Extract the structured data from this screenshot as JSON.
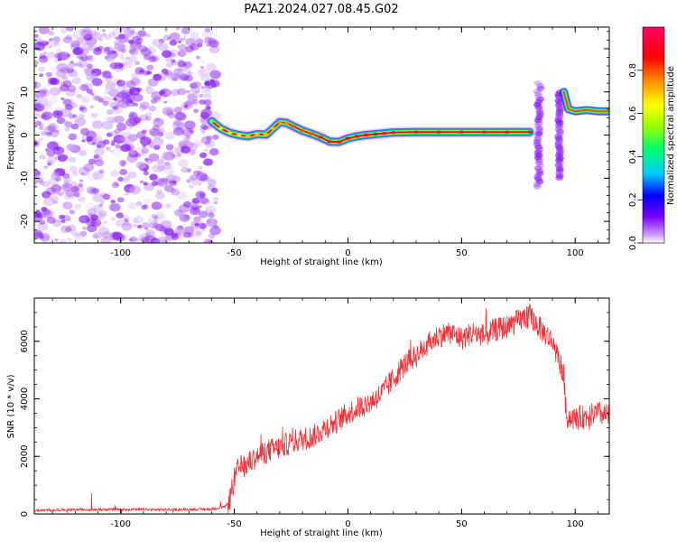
{
  "figure": {
    "title": "PAZ1.2024.027.08.45.G02"
  },
  "chart_data": [
    {
      "type": "heatmap",
      "xlabel": "Height of straight line (km)",
      "ylabel": "Frequency (Hz)",
      "xlim": [
        -138,
        115
      ],
      "ylim": [
        -25,
        25
      ],
      "x_ticks": [
        -100,
        -50,
        0,
        50,
        100
      ],
      "y_ticks": [
        -20,
        -10,
        0,
        10,
        20
      ],
      "colorbar": {
        "label": "Normalized spectral amplitude",
        "range": [
          0,
          1
        ],
        "ticks": [
          0.0,
          0.2,
          0.4,
          0.6,
          0.8
        ],
        "tick_labels": [
          "0.0",
          "0.2",
          "0.4",
          "0.6",
          "0.8"
        ],
        "colormap": [
          "#ffffff",
          "#cc99ff",
          "#7b00ff",
          "#0000ff",
          "#00ccff",
          "#00ff66",
          "#99ff00",
          "#ffff00",
          "#ff9900",
          "#ff0000",
          "#ff0066"
        ]
      },
      "noise_region": {
        "x_range": [
          -138,
          -58
        ],
        "y_range": [
          -25,
          25
        ],
        "color": "#8a2be2"
      },
      "ridge": {
        "x": [
          -60,
          -56,
          -52,
          -48,
          -44,
          -40,
          -36,
          -33,
          -30,
          -27,
          -24,
          -20,
          -16,
          -12,
          -8,
          -4,
          0,
          4,
          8,
          12,
          16,
          20,
          30,
          40,
          50,
          60,
          70,
          80
        ],
        "y": [
          3.2,
          1.5,
          0.5,
          0.0,
          -0.3,
          0.2,
          0.1,
          1.5,
          3.0,
          2.8,
          2.0,
          1.0,
          0.3,
          -0.5,
          -1.5,
          -1.6,
          -0.8,
          -0.3,
          0.0,
          0.2,
          0.4,
          0.6,
          0.7,
          0.7,
          0.7,
          0.7,
          0.7,
          0.7
        ],
        "amplitude": [
          0.5,
          0.6,
          0.6,
          0.65,
          0.7,
          0.7,
          0.7,
          0.7,
          0.75,
          0.75,
          0.8,
          0.8,
          0.8,
          0.85,
          0.85,
          0.85,
          0.9,
          0.9,
          0.9,
          0.95,
          0.95,
          0.95,
          0.95,
          0.95,
          0.95,
          0.95,
          0.9,
          0.85
        ]
      },
      "ghost_streaks": [
        {
          "x": [
            82,
            86
          ],
          "y": [
            -12,
            12
          ]
        },
        {
          "x": [
            92,
            94
          ],
          "y": [
            -10,
            10
          ]
        }
      ],
      "ridge_end": {
        "x": [
          95,
          97,
          100,
          105,
          110,
          115
        ],
        "y": [
          10,
          6,
          5.5,
          5.8,
          5.5,
          5.5
        ]
      }
    },
    {
      "type": "line",
      "xlabel": "Height of straight line (km)",
      "ylabel": "SNR (10 * v/v)",
      "xlim": [
        -138,
        115
      ],
      "ylim": [
        0,
        7500
      ],
      "x_ticks": [
        -100,
        -50,
        0,
        50,
        100
      ],
      "y_ticks": [
        0,
        2000,
        4000,
        6000
      ],
      "color": "#e8343a",
      "series": [
        {
          "x": [
            -138,
            -120,
            -100,
            -80,
            -60,
            -54,
            -52,
            -50,
            -48,
            -45,
            -40,
            -35,
            -30,
            -25,
            -20,
            -15,
            -10,
            -5,
            0,
            5,
            10,
            15,
            20,
            25,
            30,
            35,
            40,
            45,
            50,
            55,
            60,
            65,
            70,
            75,
            80,
            85,
            90,
            93,
            95,
            96,
            100,
            105,
            110,
            115
          ],
          "y": [
            120,
            150,
            160,
            150,
            170,
            250,
            500,
            1200,
            1600,
            1700,
            2000,
            2200,
            2300,
            2500,
            2600,
            2700,
            3000,
            3200,
            3500,
            3700,
            3900,
            4200,
            4700,
            5200,
            5500,
            5900,
            6200,
            6300,
            6100,
            6300,
            6200,
            6400,
            6500,
            6700,
            6900,
            6400,
            6000,
            5300,
            4800,
            3400,
            3300,
            3400,
            3500,
            3400
          ]
        }
      ]
    }
  ]
}
